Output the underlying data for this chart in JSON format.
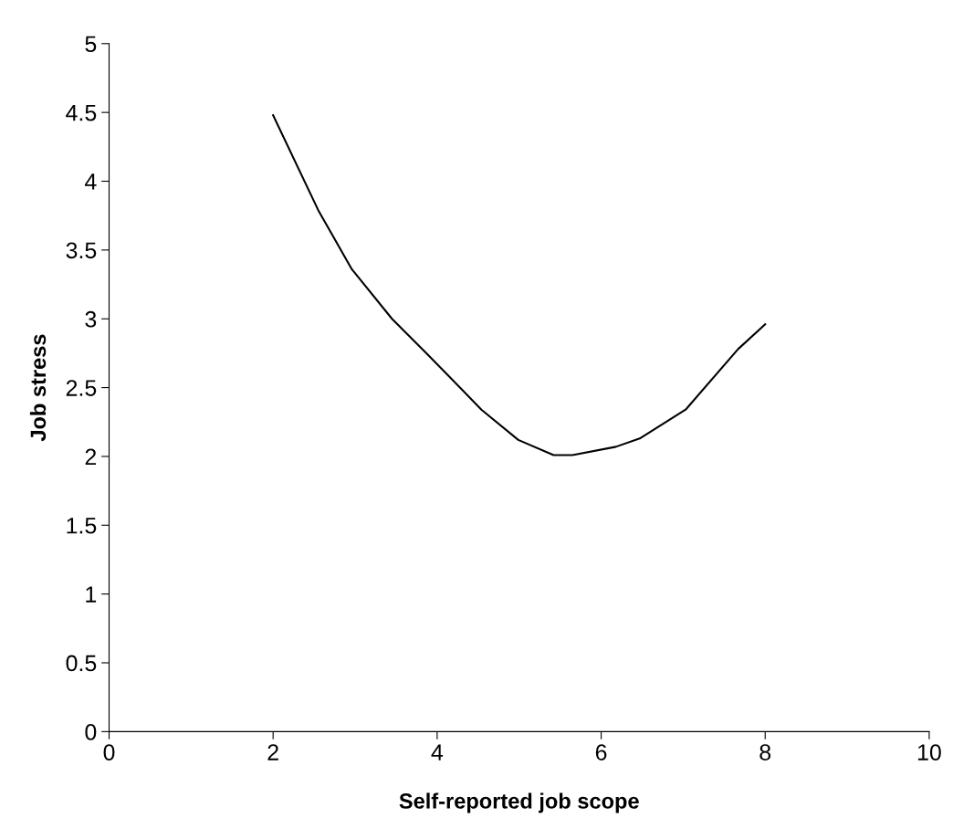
{
  "chart_data": {
    "type": "line",
    "xlabel": "Self-reported job scope",
    "ylabel": "Job stress",
    "x": [
      2,
      2.55,
      2.96,
      3.45,
      3.87,
      4.54,
      4.99,
      5.42,
      5.65,
      6.18,
      6.47,
      7.03,
      7.67,
      8
    ],
    "series": [
      {
        "color": "#000000",
        "values": [
          4.48,
          3.79,
          3.36,
          3.0,
          2.75,
          2.34,
          2.12,
          2.01,
          2.01,
          2.07,
          2.13,
          2.34,
          2.78,
          2.96
        ]
      }
    ],
    "xlim": [
      0,
      10
    ],
    "xticks": [
      0,
      2,
      4,
      6,
      8,
      10
    ],
    "ylim": [
      0,
      5
    ],
    "yticks": [
      0,
      0.5,
      1,
      1.5,
      2,
      2.5,
      3,
      3.5,
      4,
      4.5,
      5
    ],
    "grid": false,
    "legend": false,
    "marker": "none",
    "line_style": "solid"
  }
}
